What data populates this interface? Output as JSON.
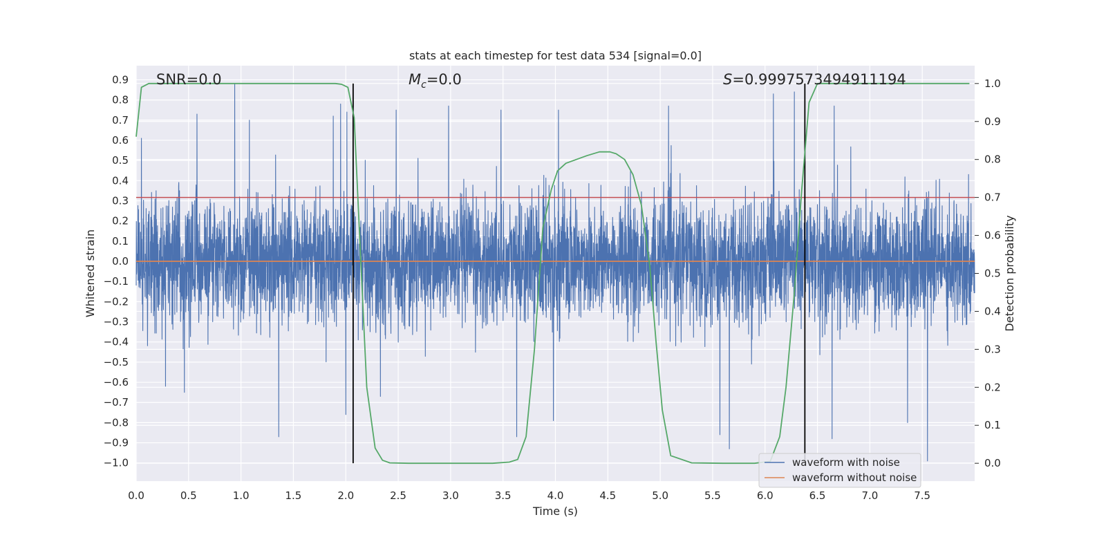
{
  "chart_data": {
    "type": "line",
    "title": "stats at each timestep for test data 534 [signal=0.0]",
    "xlabel": "Time (s)",
    "ylabel_left": "Whitened strain",
    "ylabel_right": "Detection probability",
    "xlim": [
      0.0,
      8.0
    ],
    "ylim_left": [
      -1.09,
      0.97
    ],
    "ylim_right": [
      -0.047,
      1.047
    ],
    "x_ticks": [
      "0.0",
      "0.5",
      "1.0",
      "1.5",
      "2.0",
      "2.5",
      "3.0",
      "3.5",
      "4.0",
      "4.5",
      "5.0",
      "5.5",
      "6.0",
      "6.5",
      "7.0",
      "7.5"
    ],
    "y_left_ticks": [
      "0.9",
      "0.8",
      "0.7",
      "0.6",
      "0.5",
      "0.4",
      "0.3",
      "0.2",
      "0.1",
      "0.0",
      "−0.1",
      "−0.2",
      "−0.3",
      "−0.4",
      "−0.5",
      "−0.6",
      "−0.7",
      "−0.8",
      "−0.9",
      "−1.0"
    ],
    "y_right_ticks": [
      "1.0",
      "0.9",
      "0.8",
      "0.7",
      "0.6",
      "0.5",
      "0.4",
      "0.3",
      "0.2",
      "0.1",
      "0.0"
    ],
    "annotations": {
      "snr": "SNR=0.0",
      "mc_symbol": "M",
      "mc_sub": "c",
      "mc_value": "=0.0",
      "s_symbol": "S",
      "s_value": "=0.9997573494911194"
    },
    "threshold": 0.7,
    "vlines": [
      2.07,
      6.38
    ],
    "grid": true,
    "legend_position": "lower-right",
    "series": [
      {
        "name": "waveform with noise",
        "color": "#4c72b0",
        "axis": "left",
        "envelope_peaks": [
          {
            "x": 0.05,
            "y": 0.61
          },
          {
            "x": 0.58,
            "y": 0.73
          },
          {
            "x": 0.94,
            "y": 0.88
          },
          {
            "x": 1.08,
            "y": 0.7
          },
          {
            "x": 1.88,
            "y": 0.72
          },
          {
            "x": 1.95,
            "y": 0.78
          },
          {
            "x": 2.01,
            "y": 0.74
          },
          {
            "x": 2.48,
            "y": 0.75
          },
          {
            "x": 2.98,
            "y": 0.77
          },
          {
            "x": 3.48,
            "y": 0.75
          },
          {
            "x": 4.03,
            "y": 0.75
          },
          {
            "x": 5.08,
            "y": 0.77
          },
          {
            "x": 6.08,
            "y": 0.83
          },
          {
            "x": 6.28,
            "y": 0.84
          },
          {
            "x": 6.66,
            "y": 0.77
          },
          {
            "x": 7.36,
            "y": 0.85
          }
        ],
        "envelope_troughs": [
          {
            "x": 0.28,
            "y": -0.62
          },
          {
            "x": 0.46,
            "y": -0.65
          },
          {
            "x": 1.36,
            "y": -0.87
          },
          {
            "x": 2.0,
            "y": -0.76
          },
          {
            "x": 2.07,
            "y": -0.76
          },
          {
            "x": 2.33,
            "y": -0.67
          },
          {
            "x": 3.63,
            "y": -0.87
          },
          {
            "x": 3.98,
            "y": -0.79
          },
          {
            "x": 5.57,
            "y": -0.86
          },
          {
            "x": 5.66,
            "y": -0.93
          },
          {
            "x": 6.64,
            "y": -0.88
          },
          {
            "x": 7.36,
            "y": -0.8
          },
          {
            "x": 7.55,
            "y": -0.99
          }
        ]
      },
      {
        "name": "waveform without noise",
        "color": "#dd8452",
        "axis": "left",
        "x": [
          0.0,
          8.0
        ],
        "y": [
          0.0,
          0.0
        ]
      },
      {
        "name": "detection probability",
        "color": "#55a868",
        "axis": "right",
        "x": [
          0.0,
          0.05,
          0.12,
          0.3,
          0.6,
          1.0,
          1.5,
          1.9,
          1.96,
          2.02,
          2.08,
          2.14,
          2.2,
          2.28,
          2.35,
          2.42,
          2.6,
          3.0,
          3.4,
          3.56,
          3.64,
          3.72,
          3.8,
          3.88,
          3.96,
          4.02,
          4.1,
          4.2,
          4.3,
          4.42,
          4.52,
          4.58,
          4.66,
          4.74,
          4.82,
          4.9,
          4.96,
          5.02,
          5.1,
          5.3,
          5.6,
          5.9,
          6.05,
          6.14,
          6.2,
          6.28,
          6.35,
          6.42,
          6.5,
          6.6,
          7.0,
          7.5,
          7.95
        ],
        "y": [
          0.86,
          0.99,
          1.0,
          1.0,
          1.0,
          1.0,
          1.0,
          1.0,
          0.998,
          0.99,
          0.91,
          0.55,
          0.2,
          0.04,
          0.008,
          0.001,
          0.0,
          0.0,
          0.0,
          0.003,
          0.01,
          0.07,
          0.3,
          0.62,
          0.72,
          0.77,
          0.79,
          0.8,
          0.81,
          0.82,
          0.82,
          0.815,
          0.8,
          0.76,
          0.68,
          0.52,
          0.32,
          0.14,
          0.02,
          0.001,
          0.0,
          0.0,
          0.005,
          0.07,
          0.2,
          0.45,
          0.72,
          0.95,
          1.0,
          1.0,
          1.0,
          1.0,
          1.0
        ]
      }
    ]
  }
}
